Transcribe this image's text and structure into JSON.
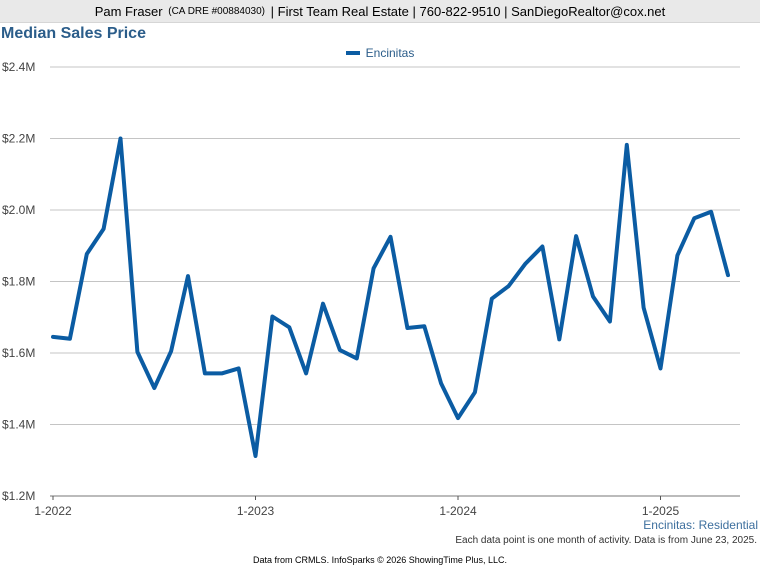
{
  "header": {
    "name": "Pam Fraser",
    "license": "(CA DRE #00884030)",
    "sep1": "|",
    "company": "First Team Real Estate",
    "sep2": "|",
    "phone": "760-822-9510",
    "sep3": "|",
    "email": "SanDiegoRealtor@cox.net"
  },
  "chart_data": {
    "type": "line",
    "title": "Median Sales Price",
    "ylim": [
      1.2,
      2.4
    ],
    "y_ticks": [
      "$1.2M",
      "$1.4M",
      "$1.6M",
      "$1.8M",
      "$2.0M",
      "$2.2M",
      "$2.4M"
    ],
    "x_ticks": [
      "1-2022",
      "1-2023",
      "1-2024",
      "1-2025"
    ],
    "grid": true,
    "legend_position": "top-center",
    "series": [
      {
        "name": "Encinitas",
        "color": "#0b5ca3",
        "start": "2022-01",
        "values": [
          1.645,
          1.64,
          1.877,
          1.947,
          2.2,
          1.603,
          1.502,
          1.605,
          1.815,
          1.543,
          1.543,
          1.557,
          1.312,
          1.702,
          1.672,
          1.543,
          1.738,
          1.608,
          1.585,
          1.837,
          1.925,
          1.67,
          1.675,
          1.515,
          1.418,
          1.49,
          1.752,
          1.787,
          1.85,
          1.898,
          1.638,
          1.927,
          1.758,
          1.688,
          2.182,
          1.727,
          1.557,
          1.873,
          1.977,
          1.995,
          1.818
        ]
      }
    ]
  },
  "region_label": "Encinitas: Residential",
  "note": "Each data point is one month of activity. Data is from June 23, 2025.",
  "footer": "Data from CRMLS. InfoSparks © 2026 ShowingTime Plus, LLC."
}
